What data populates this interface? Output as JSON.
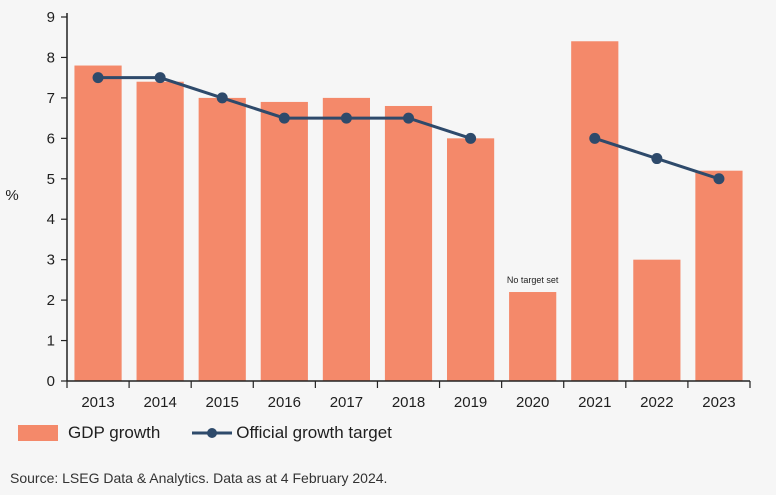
{
  "chart_data": {
    "type": "bar",
    "title": "",
    "xlabel": "",
    "ylabel": "%",
    "ylim": [
      0,
      9
    ],
    "yticks": [
      0,
      1,
      2,
      3,
      4,
      5,
      6,
      7,
      8,
      9
    ],
    "grid": false,
    "categories": [
      "2013",
      "2014",
      "2015",
      "2016",
      "2017",
      "2018",
      "2019",
      "2020",
      "2021",
      "2022",
      "2023"
    ],
    "series": [
      {
        "name": "GDP growth",
        "kind": "bar",
        "color": "#f4896a",
        "values": [
          7.8,
          7.4,
          7.0,
          6.9,
          7.0,
          6.8,
          6.0,
          2.2,
          8.4,
          3.0,
          5.2
        ]
      },
      {
        "name": "Official growth target",
        "kind": "line",
        "color": "#2e4a6b",
        "values": [
          7.5,
          7.5,
          7.0,
          6.5,
          6.5,
          6.5,
          6.0,
          null,
          6.0,
          5.5,
          5.0
        ]
      }
    ],
    "annotations": [
      {
        "category": "2020",
        "text": "No target set"
      }
    ],
    "legend_position": "bottom-left"
  },
  "legend": {
    "bar_label": "GDP growth",
    "line_label": "Official growth target"
  },
  "source": "Source: LSEG Data & Analytics. Data as at 4 February 2024."
}
